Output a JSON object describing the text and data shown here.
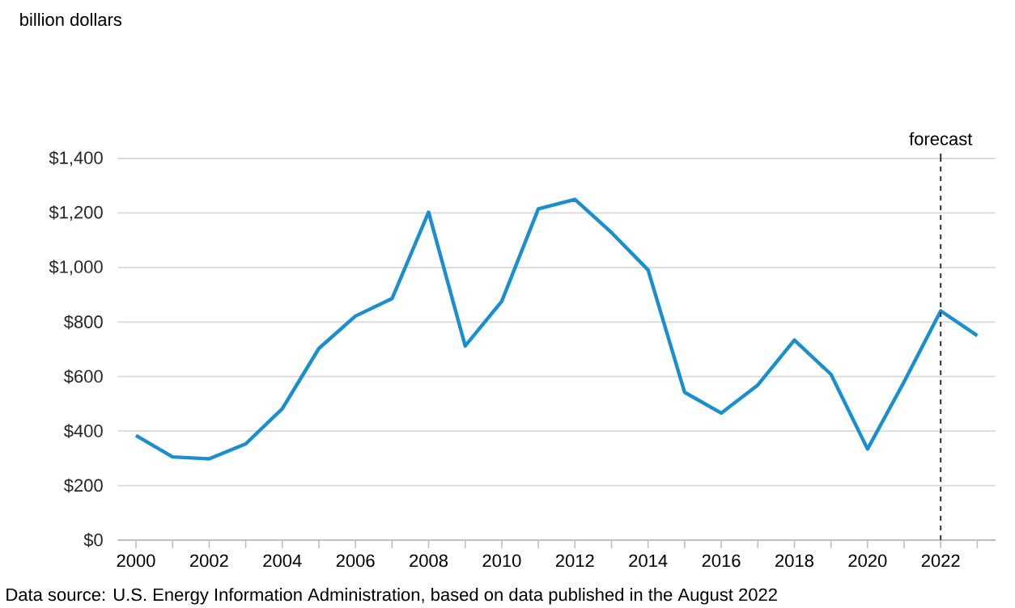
{
  "chart_data": {
    "type": "line",
    "x": [
      2000,
      2001,
      2002,
      2003,
      2004,
      2005,
      2006,
      2007,
      2008,
      2009,
      2010,
      2011,
      2012,
      2013,
      2014,
      2015,
      2016,
      2017,
      2018,
      2019,
      2020,
      2021,
      2022,
      2023
    ],
    "series": [
      {
        "color": "#1a8fd0",
        "values": [
          384,
          305,
          298,
          353,
          482,
          703,
          822,
          886,
          1203,
          712,
          876,
          1215,
          1250,
          1128,
          991,
          542,
          466,
          569,
          734,
          608,
          334,
          581,
          841,
          750
        ]
      }
    ],
    "xlim": [
      1999.5,
      2023.5
    ],
    "xticks": [
      2000,
      {
        "value": 2001,
        "label": null
      },
      2002,
      {
        "value": 2003,
        "label": null
      },
      2004,
      {
        "value": 2005,
        "label": null
      },
      2006,
      {
        "value": 2007,
        "label": null
      },
      2008,
      {
        "value": 2009,
        "label": null
      },
      2010,
      {
        "value": 2011,
        "label": null
      },
      2012,
      {
        "value": 2013,
        "label": null
      },
      2014,
      {
        "value": 2015,
        "label": null
      },
      2016,
      {
        "value": 2017,
        "label": null
      },
      2018,
      {
        "value": 2019,
        "label": null
      },
      2020,
      {
        "value": 2021,
        "label": null
      },
      2022,
      {
        "value": 2023,
        "label": null
      }
    ],
    "ylim": [
      0,
      1400
    ],
    "yticks": [
      {
        "value": 0,
        "label": "$0"
      },
      {
        "value": 200,
        "label": "$200"
      },
      {
        "value": 400,
        "label": "$400"
      },
      {
        "value": 600,
        "label": "$600"
      },
      {
        "value": 800,
        "label": "$800"
      },
      {
        "value": 1000,
        "label": "$1,000"
      },
      {
        "value": 1200,
        "label": "$1,200"
      },
      {
        "value": 1400,
        "label": "$1,400"
      }
    ],
    "grid": "y",
    "marker": "none",
    "line_style": "solid",
    "ref_lines": [
      {
        "axis": "x",
        "value": 2022,
        "label": "forecast",
        "color": "#333333",
        "line_style": "dashed"
      }
    ],
    "annotations": [
      "billion dollars",
      "Data source: U.S. Energy Information Administration, based on data published in the August 2022"
    ]
  }
}
